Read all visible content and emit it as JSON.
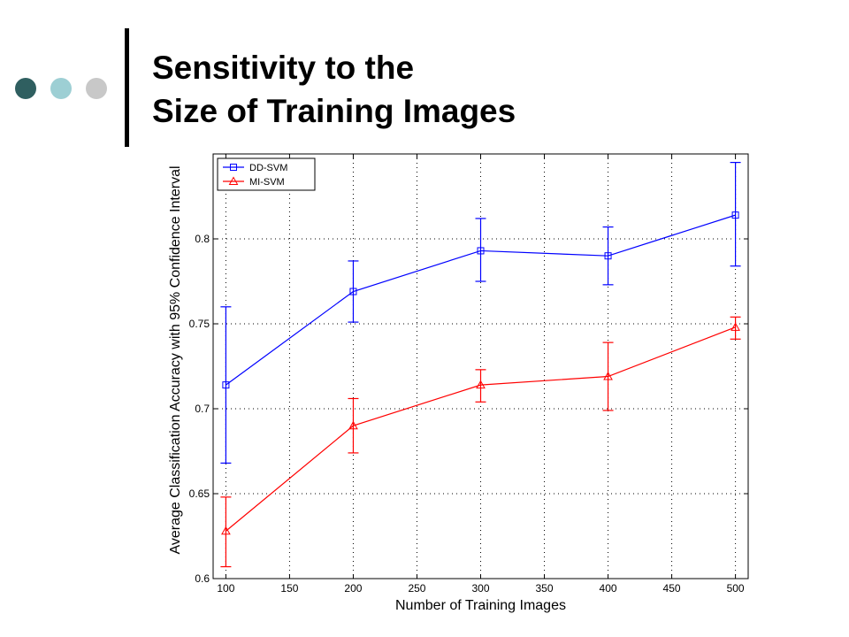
{
  "slide": {
    "title_line1": "Sensitivity to the",
    "title_line2": "Size of Training Images",
    "decor_dot_colors": [
      "#2f5f60",
      "#9dcfd4",
      "#c8c8c8"
    ]
  },
  "chart_data": {
    "type": "line",
    "title": "",
    "xlabel": "Number of Training Images",
    "ylabel": "Average Classification Accuracy with 95% Confidence Interval",
    "xlim": [
      90,
      510
    ],
    "ylim": [
      0.6,
      0.85
    ],
    "xticks": [
      100,
      150,
      200,
      250,
      300,
      350,
      400,
      450,
      500
    ],
    "yticks": [
      0.6,
      0.65,
      0.7,
      0.75,
      0.8
    ],
    "grid": true,
    "legend_position": "top-left",
    "series": [
      {
        "name": "DD-SVM",
        "color": "#0000ff",
        "marker": "square",
        "x": [
          100,
          200,
          300,
          400,
          500
        ],
        "y": [
          0.714,
          0.769,
          0.793,
          0.79,
          0.814
        ],
        "ci_low": [
          0.668,
          0.751,
          0.775,
          0.773,
          0.784
        ],
        "ci_high": [
          0.76,
          0.787,
          0.812,
          0.807,
          0.845
        ]
      },
      {
        "name": "MI-SVM",
        "color": "#ff0000",
        "marker": "triangle",
        "x": [
          100,
          200,
          300,
          400,
          500
        ],
        "y": [
          0.628,
          0.69,
          0.714,
          0.719,
          0.748
        ],
        "ci_low": [
          0.607,
          0.674,
          0.704,
          0.699,
          0.741
        ],
        "ci_high": [
          0.648,
          0.706,
          0.723,
          0.739,
          0.754
        ]
      }
    ]
  }
}
